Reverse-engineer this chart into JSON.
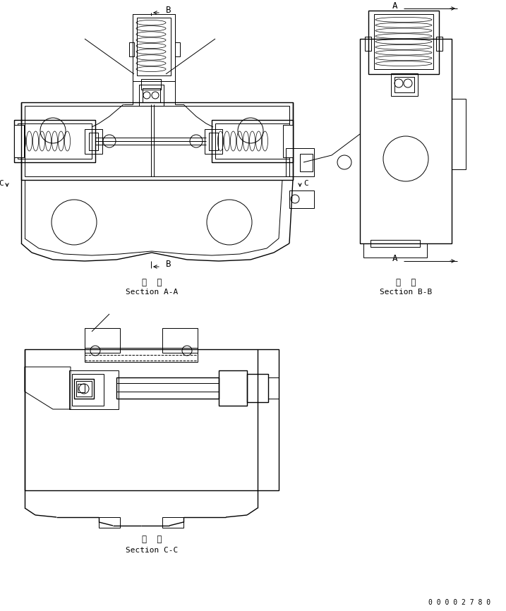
{
  "bg_color": "#ffffff",
  "line_color": "#000000",
  "section_aa_jp": "断  面",
  "section_aa_en": "Section A-A",
  "section_bb_jp": "断  面",
  "section_bb_en": "Section B-B",
  "section_cc_jp": "断  面",
  "section_cc_en": "Section C-C",
  "part_number": "0 0 0 0 2 7 8 0"
}
